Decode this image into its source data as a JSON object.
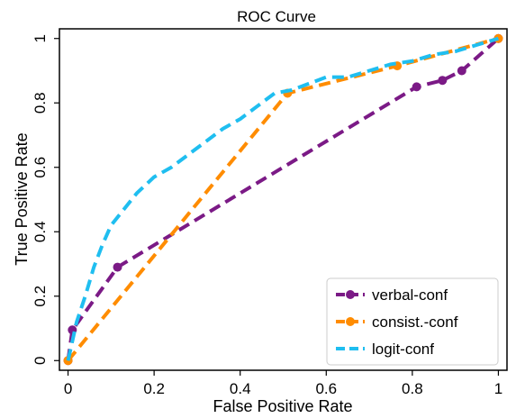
{
  "chart_data": {
    "type": "line",
    "title": "ROC Curve",
    "xlabel": "False Positive Rate",
    "ylabel": "True Positive Rate",
    "xlim": [
      -0.02,
      1.02
    ],
    "ylim": [
      -0.03,
      1.03
    ],
    "x_ticks": [
      0,
      0.2,
      0.4,
      0.6,
      0.8,
      1
    ],
    "x_tick_labels": [
      "0",
      "0.2",
      "0.4",
      "0.6",
      "0.8",
      "1"
    ],
    "y_ticks": [
      0,
      0.2,
      0.4,
      0.6,
      0.8,
      1
    ],
    "y_tick_labels": [
      "0",
      "0.2",
      "0.4",
      "0.6",
      "0.8",
      "1"
    ],
    "grid": false,
    "legend_position": "bottom-right",
    "series": [
      {
        "name": "verbal-conf",
        "color": "#7b1a86",
        "markers": true,
        "x": [
          0,
          0.01,
          0.115,
          0.81,
          0.87,
          0.915,
          1
        ],
        "y": [
          0,
          0.095,
          0.29,
          0.85,
          0.87,
          0.9,
          1
        ]
      },
      {
        "name": "consist.-conf",
        "color": "#ff8c00",
        "markers": true,
        "x": [
          0,
          0.51,
          0.765,
          1
        ],
        "y": [
          0,
          0.83,
          0.915,
          1
        ]
      },
      {
        "name": "logit-conf",
        "color": "#1fbef0",
        "markers": false,
        "x": [
          0,
          0.02,
          0.04,
          0.06,
          0.08,
          0.1,
          0.13,
          0.16,
          0.2,
          0.24,
          0.28,
          0.32,
          0.36,
          0.4,
          0.44,
          0.48,
          0.52,
          0.56,
          0.6,
          0.65,
          0.7,
          0.75,
          0.8,
          0.85,
          0.9,
          0.95,
          1
        ],
        "y": [
          0,
          0.12,
          0.2,
          0.29,
          0.36,
          0.42,
          0.47,
          0.52,
          0.57,
          0.6,
          0.64,
          0.68,
          0.72,
          0.75,
          0.79,
          0.83,
          0.84,
          0.86,
          0.88,
          0.88,
          0.9,
          0.92,
          0.93,
          0.95,
          0.96,
          0.98,
          1
        ]
      }
    ]
  }
}
